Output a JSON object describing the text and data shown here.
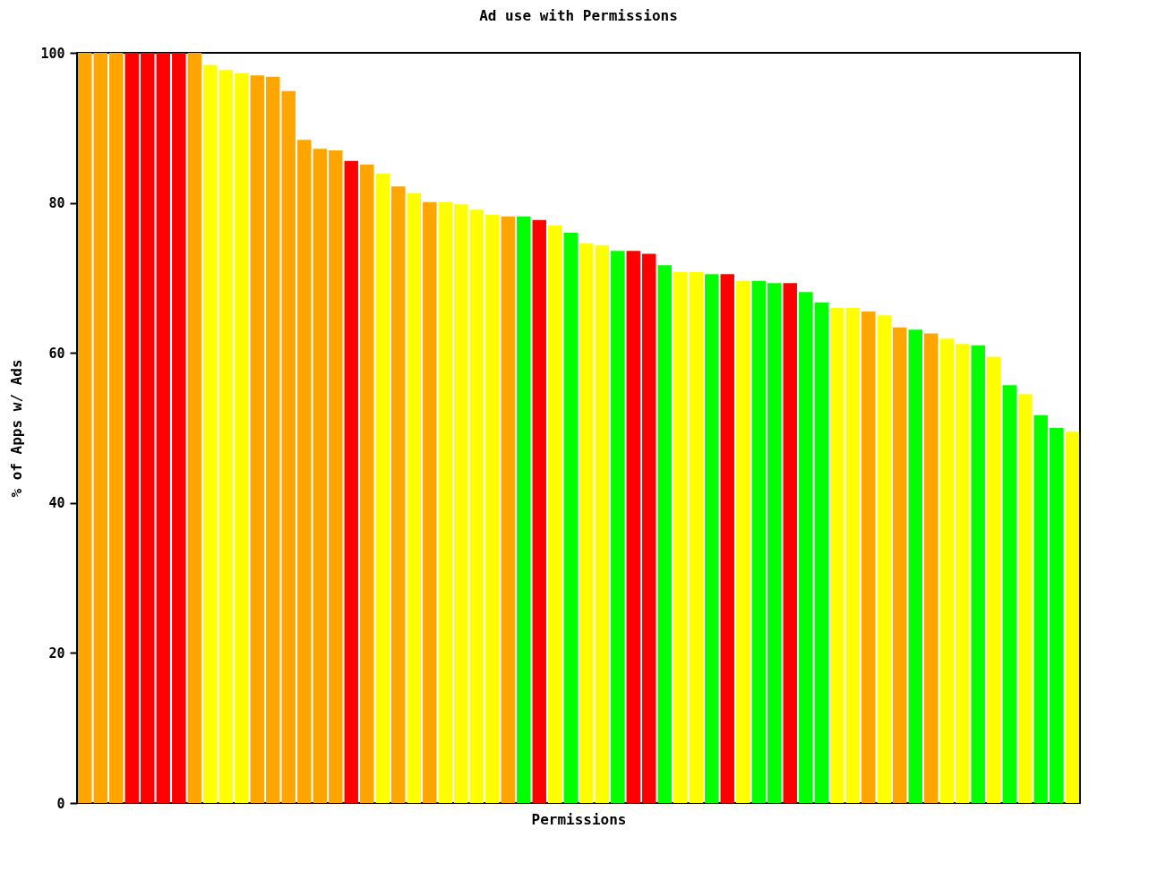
{
  "chart_data": {
    "type": "bar",
    "title": "Ad use with Permissions",
    "xlabel": "Permissions",
    "ylabel": "% of Apps w/ Ads",
    "categories": [
      null,
      null,
      null,
      null,
      null,
      null,
      null,
      null,
      null,
      null,
      null,
      null,
      null,
      null,
      null,
      null,
      null,
      null,
      null,
      null,
      null,
      null,
      null,
      null,
      null,
      null,
      null,
      null,
      null,
      null,
      null,
      null,
      null,
      null,
      null,
      null,
      null,
      null,
      null,
      null,
      null,
      null,
      null,
      null,
      null,
      null,
      null,
      null,
      null,
      null,
      null,
      null,
      null,
      null,
      null,
      null,
      null,
      null,
      null,
      null,
      null,
      null,
      null,
      null
    ],
    "values": [
      100,
      100,
      100,
      100,
      100,
      100,
      100,
      100,
      98.4,
      97.7,
      97.3,
      97.0,
      96.8,
      94.9,
      88.4,
      87.2,
      87.0,
      85.6,
      85.1,
      83.9,
      82.2,
      81.3,
      80.1,
      80.1,
      79.8,
      79.1,
      78.4,
      78.2,
      78.2,
      77.7,
      77.0,
      76.0,
      74.6,
      74.3,
      73.6,
      73.6,
      73.2,
      71.7,
      70.8,
      70.8,
      70.5,
      70.5,
      69.6,
      69.6,
      69.3,
      69.3,
      68.1,
      66.7,
      66.0,
      66.0,
      65.5,
      65.0,
      63.4,
      63.1,
      62.6,
      61.9,
      61.2,
      61.0,
      59.5,
      55.7,
      54.5,
      51.7,
      50.0,
      49.5
    ],
    "colors": [
      "#ffa500",
      "#ffa500",
      "#ffa500",
      "#ff0000",
      "#ff0000",
      "#ff0000",
      "#ff0000",
      "#ffa500",
      "#ffff00",
      "#ffff00",
      "#ffff00",
      "#ffa500",
      "#ffa500",
      "#ffa500",
      "#ffa500",
      "#ffa500",
      "#ffa500",
      "#ff0000",
      "#ffa500",
      "#ffff00",
      "#ffa500",
      "#ffff00",
      "#ffa500",
      "#ffff00",
      "#ffff00",
      "#ffff00",
      "#ffff00",
      "#ffa500",
      "#00ff00",
      "#ff0000",
      "#ffff00",
      "#00ff00",
      "#ffff00",
      "#ffff00",
      "#00ff00",
      "#ff0000",
      "#ff0000",
      "#00ff00",
      "#ffff00",
      "#ffff00",
      "#00ff00",
      "#ff0000",
      "#ffff00",
      "#00ff00",
      "#00ff00",
      "#ff0000",
      "#00ff00",
      "#00ff00",
      "#ffff00",
      "#ffff00",
      "#ffa500",
      "#ffff00",
      "#ffa500",
      "#00ff00",
      "#ffa500",
      "#ffff00",
      "#ffff00",
      "#00ff00",
      "#ffff00",
      "#00ff00",
      "#ffff00",
      "#00ff00",
      "#00ff00",
      "#ffff00"
    ],
    "ylim": [
      0,
      100
    ],
    "yticks": [
      0,
      20,
      40,
      60,
      80,
      100
    ],
    "grid": false,
    "legend": false
  }
}
